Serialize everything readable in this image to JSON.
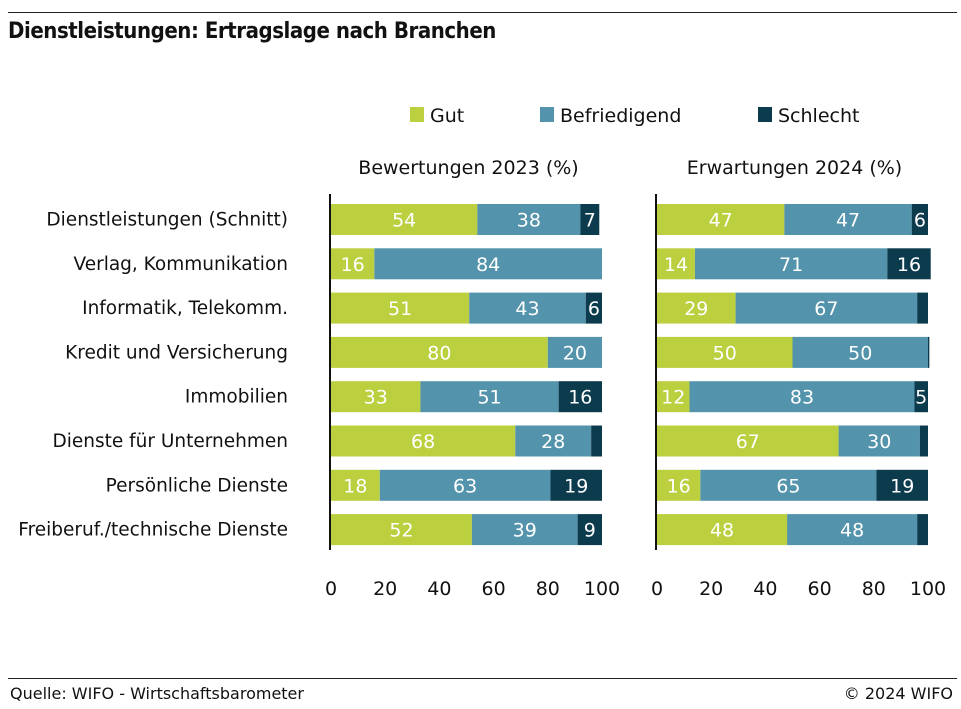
{
  "header": {
    "title": "Dienstleistungen: Ertragslage nach Branchen"
  },
  "footer": {
    "source": "Quelle: WIFO - Wirtschaftsbarometer",
    "copyright": "© 2024 WIFO"
  },
  "colors": {
    "gut": "#bccf3f",
    "befriedigend": "#5493ac",
    "schlecht": "#0c3b4e",
    "axis": "#111111",
    "label_dark": "#ffffff",
    "label_light": "#ffffff"
  },
  "chart_data": [
    {
      "type": "bar",
      "orientation": "horizontal",
      "stacked": true,
      "title": "Bewertungen 2023 (%)",
      "categories": [
        "Dienstleistungen (Schnitt)",
        "Verlag, Kommunikation",
        "Informatik, Telekomm.",
        "Kredit und Versicherung",
        "Immobilien",
        "Dienste für Unternehmen",
        "Persönliche Dienste",
        "Freiberuf./technische Dienste"
      ],
      "series": [
        {
          "name": "Gut",
          "values": [
            54,
            16,
            51,
            80,
            33,
            68,
            18,
            52
          ],
          "labels": [
            "54",
            "16",
            "51",
            "80",
            "33",
            "68",
            "18",
            "52"
          ]
        },
        {
          "name": "Befriedigend",
          "values": [
            38,
            84,
            43,
            20,
            51,
            28,
            63,
            39
          ],
          "labels": [
            "38",
            "84",
            "43",
            "20",
            "51",
            "28",
            "63",
            "39"
          ]
        },
        {
          "name": "Schlecht",
          "values": [
            7,
            0,
            6,
            0,
            16,
            4,
            19,
            9
          ],
          "labels": [
            "7",
            "",
            "6",
            "",
            "16",
            "",
            "19",
            "9"
          ]
        }
      ],
      "xlim": [
        0,
        100
      ],
      "xticks": [
        "0",
        "20",
        "40",
        "60",
        "80",
        "100"
      ],
      "legend": "top"
    },
    {
      "type": "bar",
      "orientation": "horizontal",
      "stacked": true,
      "title": "Erwartungen 2024 (%)",
      "categories": [
        "Dienstleistungen (Schnitt)",
        "Verlag, Kommunikation",
        "Informatik, Telekomm.",
        "Kredit und Versicherung",
        "Immobilien",
        "Dienste für Unternehmen",
        "Persönliche Dienste",
        "Freiberuf./technische Dienste"
      ],
      "series": [
        {
          "name": "Gut",
          "values": [
            47,
            14,
            29,
            50,
            12,
            67,
            16,
            48
          ],
          "labels": [
            "47",
            "14",
            "29",
            "50",
            "12",
            "67",
            "16",
            "48"
          ]
        },
        {
          "name": "Befriedigend",
          "values": [
            47,
            71,
            67,
            50,
            83,
            30,
            65,
            48
          ],
          "labels": [
            "47",
            "71",
            "67",
            "50",
            "83",
            "30",
            "65",
            "48"
          ]
        },
        {
          "name": "Schlecht",
          "values": [
            6,
            16,
            4,
            0.5,
            5,
            3,
            19,
            4
          ],
          "labels": [
            "6",
            "16",
            "",
            "",
            "5",
            "",
            "19",
            ""
          ]
        }
      ],
      "xlim": [
        0,
        100
      ],
      "xticks": [
        "0",
        "20",
        "40",
        "60",
        "80",
        "100"
      ],
      "legend": "top"
    }
  ]
}
